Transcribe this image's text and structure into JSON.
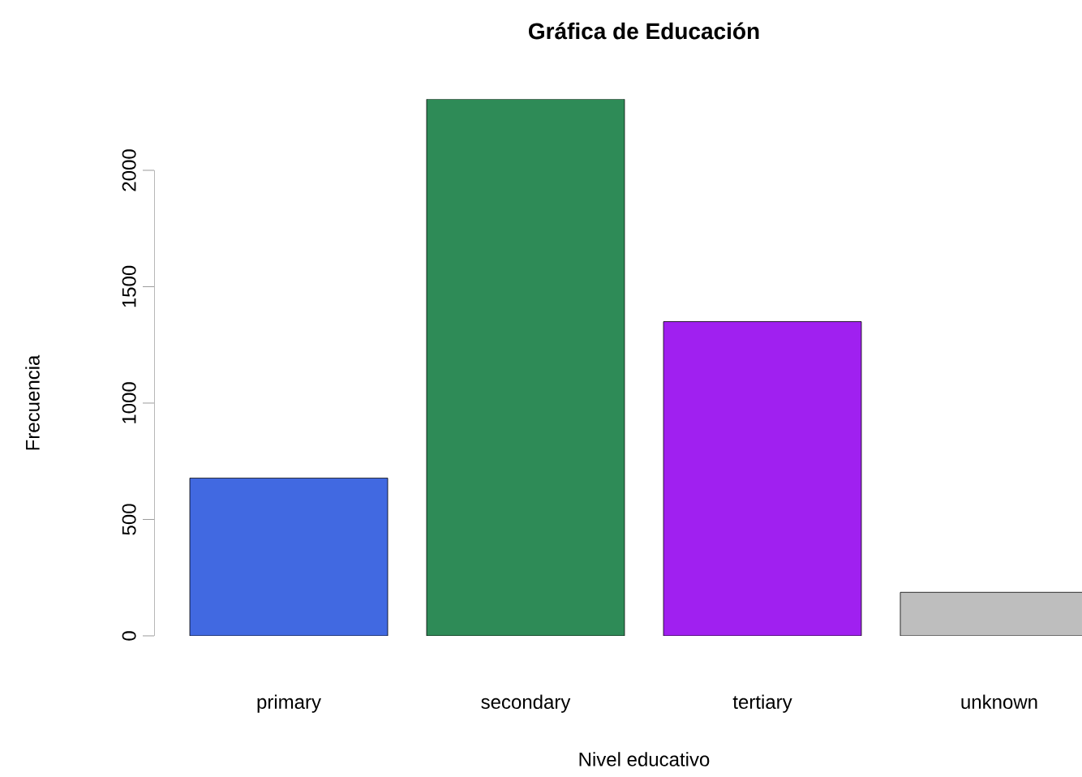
{
  "chart_data": {
    "type": "bar",
    "title": "Gráfica de Educación",
    "xlabel": "Nivel educativo",
    "ylabel": "Frecuencia",
    "categories": [
      "primary",
      "secondary",
      "tertiary",
      "unknown"
    ],
    "values": [
      678,
      2306,
      1350,
      187
    ],
    "colors": [
      "#4169e1",
      "#2e8b57",
      "#a020f0",
      "#bebebe"
    ],
    "ylim": [
      0,
      2306
    ],
    "yticks": [
      0,
      500,
      1000,
      1500,
      2000
    ]
  }
}
